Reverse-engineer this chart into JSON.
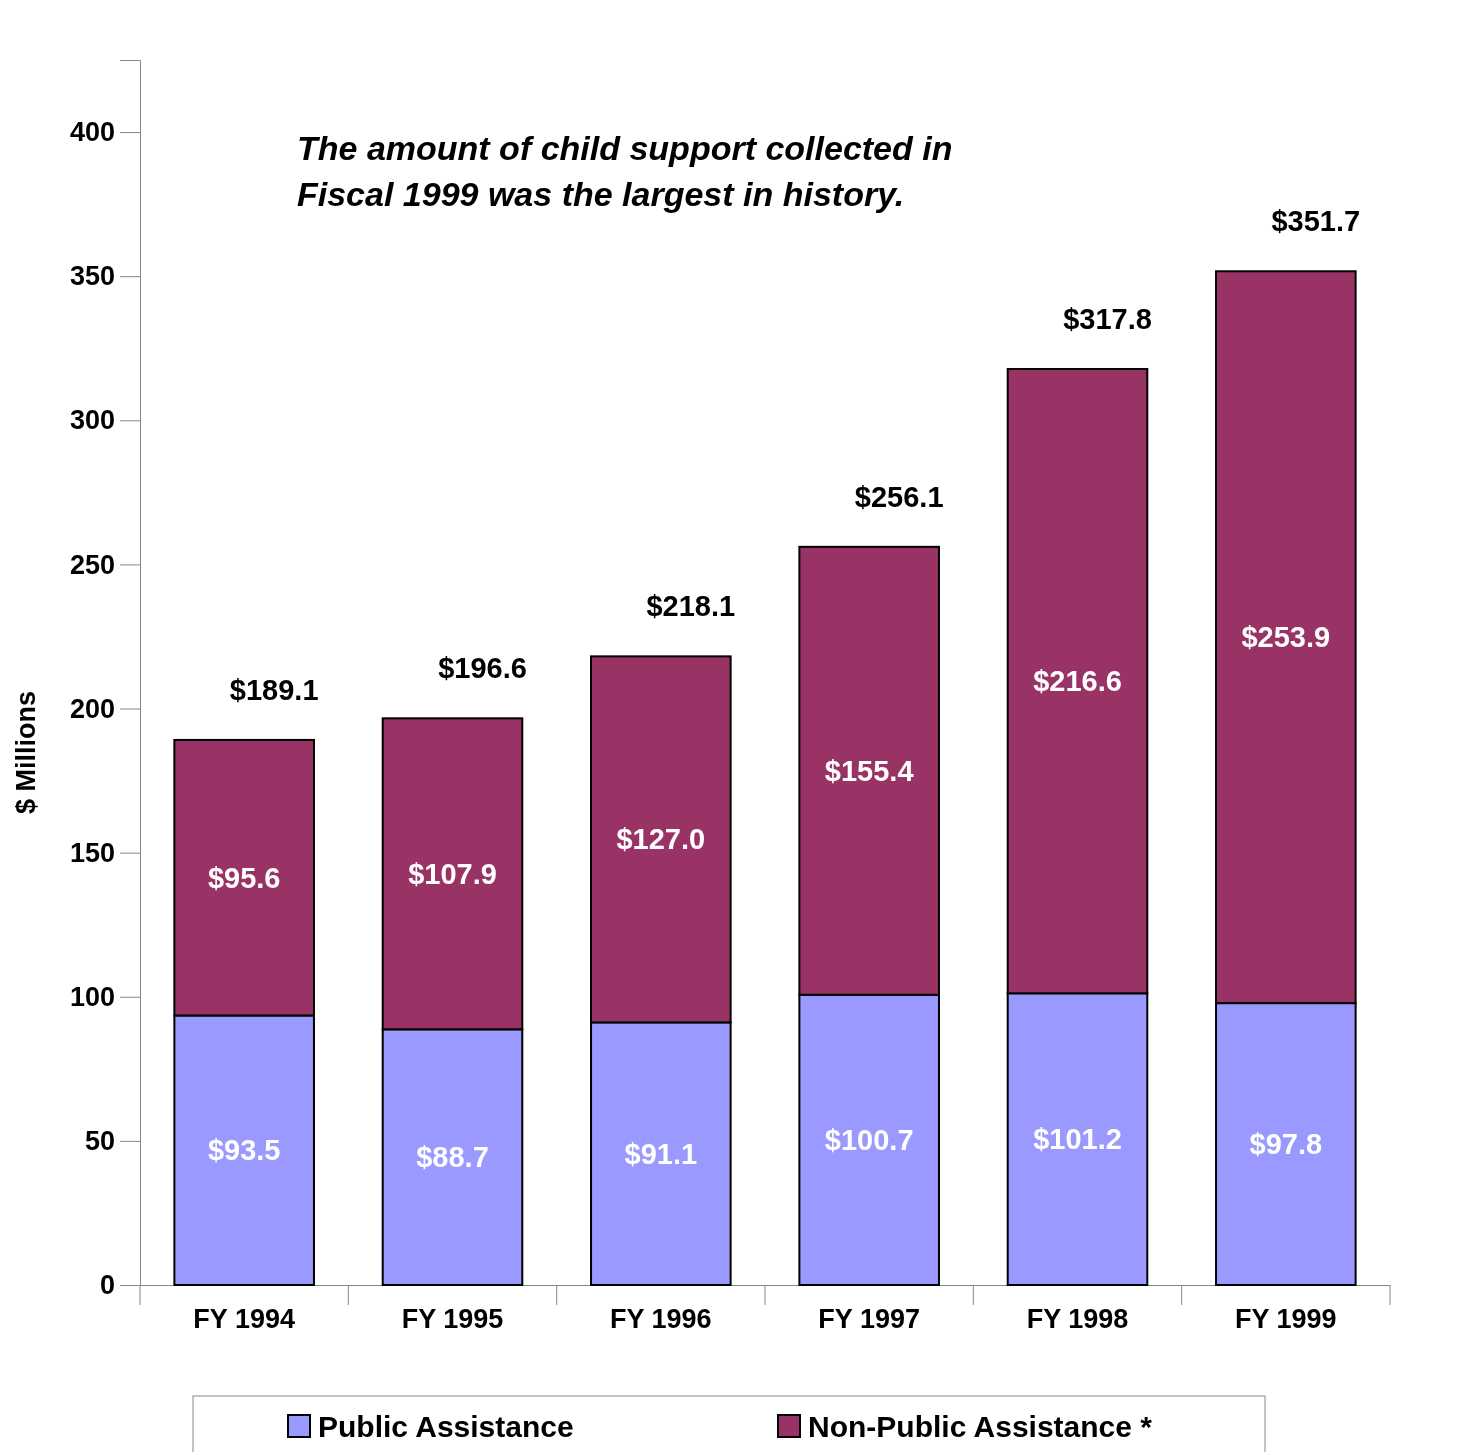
{
  "chart_data": {
    "type": "bar",
    "stacked": true,
    "ylabel": "$ Millions",
    "categories": [
      "FY 1994",
      "FY 1995",
      "FY 1996",
      "FY 1997",
      "FY 1998",
      "FY 1999"
    ],
    "series": [
      {
        "name": "Public Assistance",
        "color": "#9999ff",
        "values": [
          93.5,
          88.7,
          91.1,
          100.7,
          101.2,
          97.8
        ],
        "value_labels": [
          "$93.5",
          "$88.7",
          "$91.1",
          "$100.7",
          "$101.2",
          "$97.8"
        ]
      },
      {
        "name": "Non-Public Assistance *",
        "color": "#993366",
        "values": [
          95.6,
          107.9,
          127.0,
          155.4,
          216.6,
          253.9
        ],
        "value_labels": [
          "$95.6",
          "$107.9",
          "$127.0",
          "$155.4",
          "$216.6",
          "$253.9"
        ]
      }
    ],
    "totals": [
      "$189.1",
      "$196.6",
      "$218.1",
      "$256.1",
      "$317.8",
      "$351.7"
    ],
    "annotations": [
      "The amount of child support collected in Fiscal 1999 was the largest in history."
    ],
    "ylim": [
      0,
      425
    ],
    "yticks": [
      0,
      50,
      100,
      150,
      200,
      250,
      300,
      350,
      400
    ],
    "grid": false,
    "legend": "bottom"
  }
}
